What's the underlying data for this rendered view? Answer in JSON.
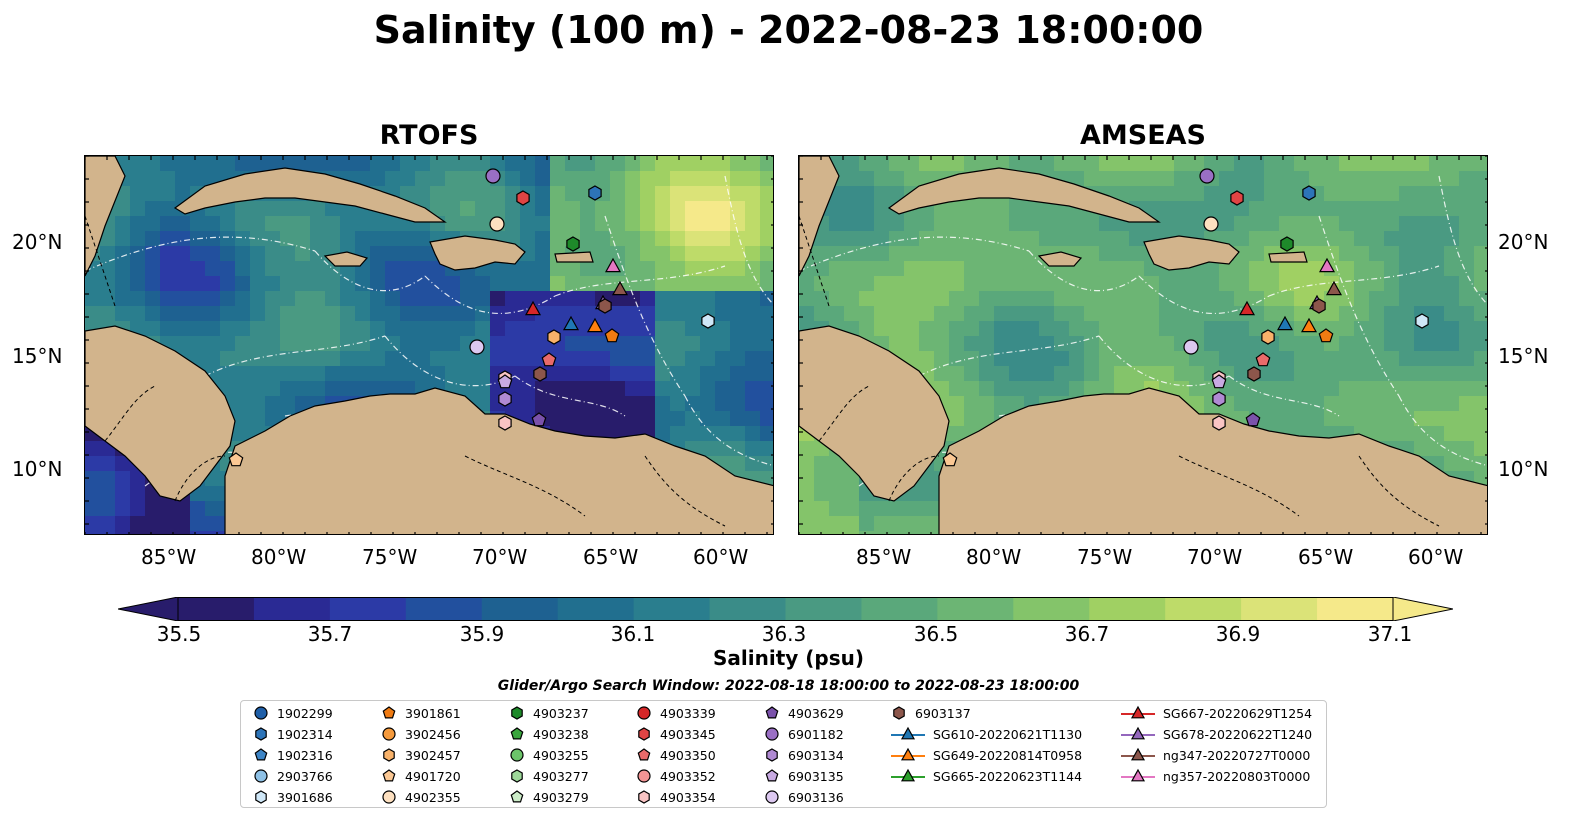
{
  "title": "Salinity (100 m) - 2022-08-23 18:00:00",
  "panels": [
    {
      "title": "RTOFS",
      "scheme": "rtofs"
    },
    {
      "title": "AMSEAS",
      "scheme": "amseas"
    }
  ],
  "axes": {
    "lon_ticks": [
      "85°W",
      "80°W",
      "75°W",
      "70°W",
      "65°W",
      "60°W"
    ],
    "lat_ticks": [
      "20°N",
      "15°N",
      "10°N"
    ]
  },
  "colorbar": {
    "label": "Salinity (psu)",
    "ticks": [
      "35.5",
      "35.7",
      "35.9",
      "36.1",
      "36.3",
      "36.5",
      "36.7",
      "36.9",
      "37.1"
    ],
    "colors": [
      "#281c6b",
      "#2a2a94",
      "#2c3aa6",
      "#22509e",
      "#1e6191",
      "#216f8f",
      "#2a7e8e",
      "#3a8c88",
      "#4a9a82",
      "#5aa87b",
      "#6cb574",
      "#84c46a",
      "#a0d063",
      "#bedb69",
      "#dbe378",
      "#f5e98a"
    ]
  },
  "search_window": "Glider/Argo Search Window: 2022-08-18 18:00:00 to 2022-08-23 18:00:00",
  "legend": {
    "columns": [
      [
        {
          "label": "1902299",
          "marker": "circle",
          "color": "#1f5fa8"
        },
        {
          "label": "1902314",
          "marker": "hexagon",
          "color": "#2d74b8"
        },
        {
          "label": "1902316",
          "marker": "pentagon",
          "color": "#3d85c6"
        },
        {
          "label": "2903766",
          "marker": "circle",
          "color": "#8ec1e6"
        },
        {
          "label": "3901686",
          "marker": "hexagon",
          "color": "#cfe7f7"
        }
      ],
      [
        {
          "label": "3901861",
          "marker": "pentagon",
          "color": "#f07b12"
        },
        {
          "label": "3902456",
          "marker": "circle",
          "color": "#f59a3c"
        },
        {
          "label": "3902457",
          "marker": "hexagon",
          "color": "#f8b26a"
        },
        {
          "label": "4901720",
          "marker": "pentagon",
          "color": "#fbc894"
        },
        {
          "label": "4902355",
          "marker": "circle",
          "color": "#fde0c0"
        }
      ],
      [
        {
          "label": "4903237",
          "marker": "hexagon",
          "color": "#1e8a2a"
        },
        {
          "label": "4903238",
          "marker": "pentagon",
          "color": "#3aa63e"
        },
        {
          "label": "4903255",
          "marker": "circle",
          "color": "#6cc46a"
        },
        {
          "label": "4903277",
          "marker": "hexagon",
          "color": "#9ed89a"
        },
        {
          "label": "4903279",
          "marker": "pentagon",
          "color": "#ccecc8"
        }
      ],
      [
        {
          "label": "4903339",
          "marker": "circle",
          "color": "#d62728"
        },
        {
          "label": "4903345",
          "marker": "hexagon",
          "color": "#e04444"
        },
        {
          "label": "4903350",
          "marker": "pentagon",
          "color": "#ea6a6a"
        },
        {
          "label": "4903352",
          "marker": "circle",
          "color": "#f29494"
        },
        {
          "label": "4903354",
          "marker": "hexagon",
          "color": "#f9c4c4"
        }
      ],
      [
        {
          "label": "4903629",
          "marker": "pentagon",
          "color": "#7b52ab"
        },
        {
          "label": "6901182",
          "marker": "circle",
          "color": "#9a6fc4"
        },
        {
          "label": "6903134",
          "marker": "hexagon",
          "color": "#b08ad3"
        },
        {
          "label": "6903135",
          "marker": "pentagon",
          "color": "#c8aae2"
        },
        {
          "label": "6903136",
          "marker": "circle",
          "color": "#dcc8f0"
        }
      ],
      [
        {
          "label": "6903137",
          "marker": "hexagon",
          "color": "#8c564b"
        },
        {
          "label": "SG610-20220621T1130",
          "marker": "triangle-line",
          "color": "#1f77b4"
        },
        {
          "label": "SG649-20220814T0958",
          "marker": "triangle-line",
          "color": "#ff7f0e"
        },
        {
          "label": "SG665-20220623T1144",
          "marker": "triangle-line",
          "color": "#2ca02c"
        }
      ],
      [
        {
          "label": "SG667-20220629T1254",
          "marker": "triangle-line",
          "color": "#d62728"
        },
        {
          "label": "SG678-20220622T1240",
          "marker": "triangle-line",
          "color": "#9467bd"
        },
        {
          "label": "ng347-20220727T0000",
          "marker": "triangle-line",
          "color": "#8c564b"
        },
        {
          "label": "ng357-20220803T0000",
          "marker": "triangle-line",
          "color": "#e377c2"
        }
      ]
    ]
  },
  "map_colors": {
    "land": "#d2b48c",
    "water_shelf": "#9cb6e2",
    "land_edge": "#000000"
  }
}
